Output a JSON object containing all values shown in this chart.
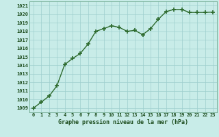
{
  "x": [
    0,
    1,
    2,
    3,
    4,
    5,
    6,
    7,
    8,
    9,
    10,
    11,
    12,
    13,
    14,
    15,
    16,
    17,
    18,
    19,
    20,
    21,
    22,
    23
  ],
  "y": [
    1009.0,
    1009.7,
    1010.4,
    1011.6,
    1014.1,
    1014.8,
    1015.4,
    1016.5,
    1018.0,
    1018.3,
    1018.65,
    1018.45,
    1018.0,
    1018.1,
    1017.6,
    1018.3,
    1019.4,
    1020.3,
    1020.55,
    1020.55,
    1020.2,
    1020.2,
    1020.2,
    1020.25
  ],
  "line_color": "#2d6a2d",
  "marker": "+",
  "marker_size": 4,
  "marker_lw": 1.2,
  "line_width": 1.0,
  "bg_color": "#c8ece8",
  "grid_color": "#9ecece",
  "xlabel": "Graphe pression niveau de la mer (hPa)",
  "xlabel_color": "#1a4a1a",
  "ylabel_color": "#1a4a1a",
  "ylim_min": 1008.5,
  "ylim_max": 1021.5,
  "xlim_min": -0.5,
  "xlim_max": 23.5,
  "xtick_labels": [
    "0",
    "1",
    "2",
    "3",
    "4",
    "5",
    "6",
    "7",
    "8",
    "9",
    "10",
    "11",
    "12",
    "13",
    "14",
    "15",
    "16",
    "17",
    "18",
    "19",
    "20",
    "21",
    "22",
    "23"
  ],
  "ytick_labels": [
    "1009",
    "1010",
    "1011",
    "1012",
    "1013",
    "1014",
    "1015",
    "1016",
    "1017",
    "1018",
    "1019",
    "1020",
    "1021"
  ],
  "ytick_values": [
    1009,
    1010,
    1011,
    1012,
    1013,
    1014,
    1015,
    1016,
    1017,
    1018,
    1019,
    1020,
    1021
  ]
}
